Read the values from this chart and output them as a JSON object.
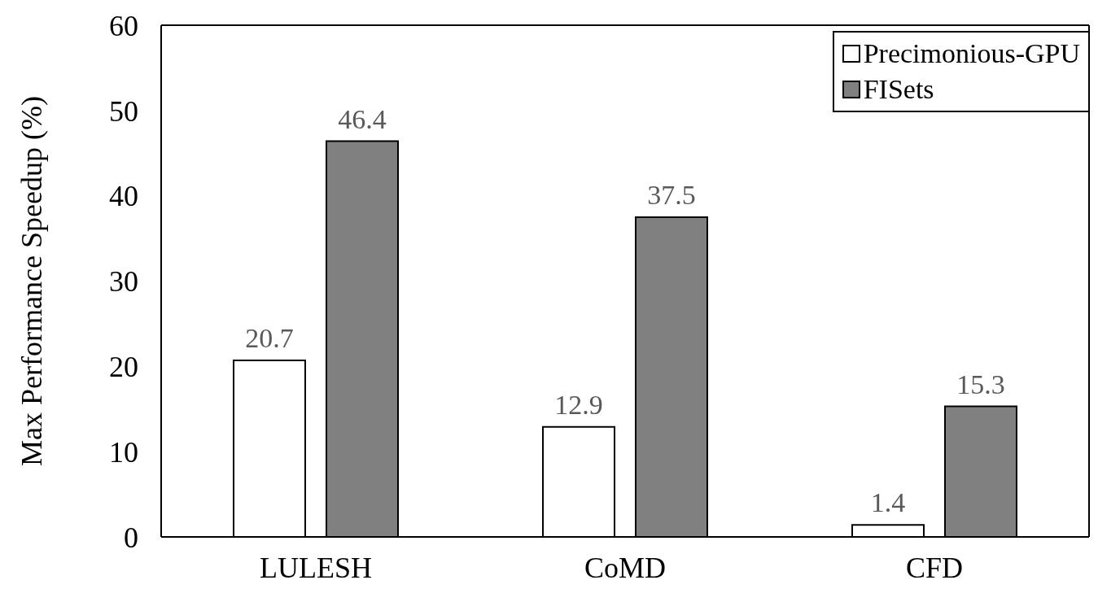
{
  "chart_data": {
    "type": "bar",
    "ylabel": "Max Performance Speedup (%)",
    "categories": [
      "LULESH",
      "CoMD",
      "CFD"
    ],
    "series": [
      {
        "name": "Precimonious-GPU",
        "color": "#ffffff",
        "values": [
          20.7,
          12.9,
          1.4
        ]
      },
      {
        "name": "FISets",
        "color": "#808080",
        "values": [
          46.4,
          37.5,
          15.3
        ]
      }
    ],
    "ylim": [
      0,
      60
    ],
    "yticks": [
      0,
      10,
      20,
      30,
      40,
      50,
      60
    ],
    "data_labels": true,
    "legend": "top right",
    "grid": false
  }
}
